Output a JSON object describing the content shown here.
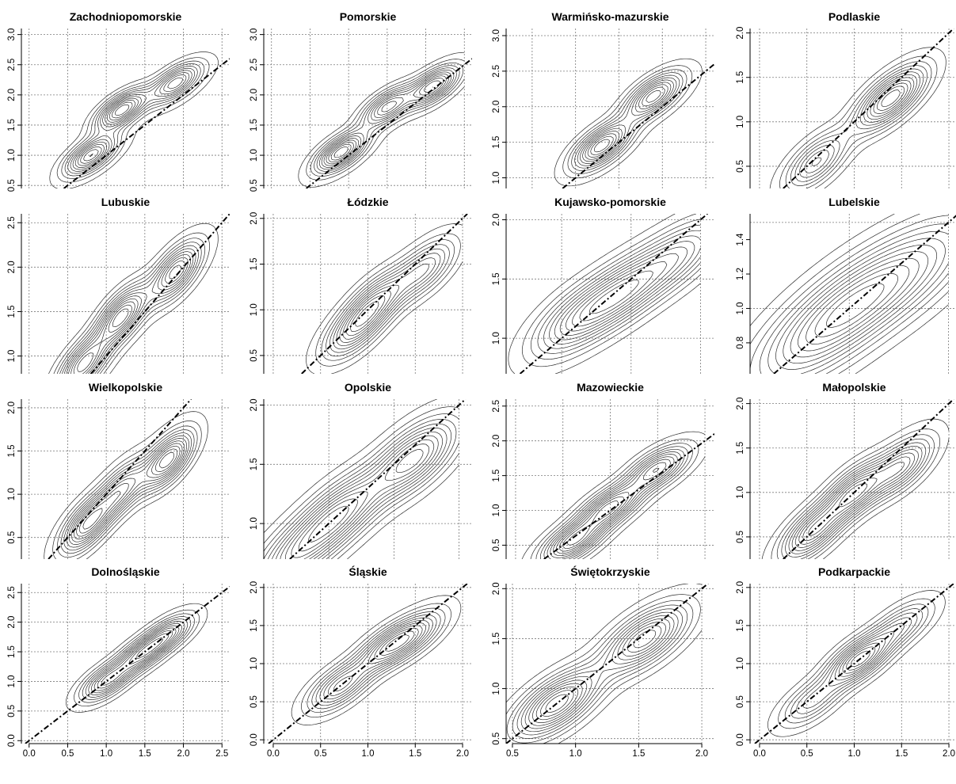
{
  "chart_data": [
    {
      "type": "contour",
      "title": "Zachodniopomorskie",
      "xlim": [
        -0.1,
        2.6
      ],
      "ylim": [
        0.45,
        3.1
      ],
      "xticks": [],
      "yticks": [
        0.5,
        1.0,
        1.5,
        2.0,
        2.5,
        3.0
      ],
      "ytick_labels": [
        "0.5",
        "1.0",
        "1.5",
        "2.0",
        "2.5",
        "3.0"
      ],
      "grid": true,
      "reference_line": "y = x",
      "range": [
        0.2,
        2.5
      ],
      "modes": [
        {
          "x": 0.8,
          "y": 1.0,
          "weight": 1.0
        },
        {
          "x": 1.2,
          "y": 1.75,
          "weight": 1.1
        },
        {
          "x": 1.9,
          "y": 2.2,
          "weight": 0.9
        }
      ]
    },
    {
      "type": "contour",
      "title": "Pomorskie",
      "xlim": [
        -0.1,
        2.6
      ],
      "ylim": [
        0.45,
        3.1
      ],
      "xticks": [],
      "yticks": [
        0.5,
        1.0,
        1.5,
        2.0,
        2.5,
        3.0
      ],
      "ytick_labels": [
        "0.5",
        "1.0",
        "1.5",
        "2.0",
        "2.5",
        "3.0"
      ],
      "grid": true,
      "reference_line": "y = x",
      "range": [
        0.2,
        2.5
      ],
      "modes": [
        {
          "x": 0.9,
          "y": 1.05,
          "weight": 1.0
        },
        {
          "x": 1.5,
          "y": 1.8,
          "weight": 0.8
        },
        {
          "x": 2.1,
          "y": 2.15,
          "weight": 0.9
        }
      ]
    },
    {
      "type": "contour",
      "title": "Warmińsko-mazurskie",
      "xlim": [
        0.2,
        2.6
      ],
      "ylim": [
        0.85,
        3.1
      ],
      "xticks": [],
      "yticks": [
        1.0,
        1.5,
        2.0,
        2.5,
        3.0
      ],
      "ytick_labels": [
        "1.0",
        "1.5",
        "2.0",
        "2.5",
        "3.0"
      ],
      "grid": true,
      "reference_line": "y = x",
      "range": [
        0.8,
        2.5
      ],
      "modes": [
        {
          "x": 1.3,
          "y": 1.45,
          "weight": 1.1
        },
        {
          "x": 1.9,
          "y": 2.15,
          "weight": 1.0
        }
      ]
    },
    {
      "type": "contour",
      "title": "Podlaskie",
      "xlim": [
        -0.1,
        2.1
      ],
      "ylim": [
        0.25,
        2.05
      ],
      "xticks": [],
      "yticks": [
        0.5,
        1.0,
        1.5,
        2.0
      ],
      "ytick_labels": [
        "0.5",
        "1.0",
        "1.5",
        "2.0"
      ],
      "grid": true,
      "reference_line": "y = x",
      "range": [
        0.2,
        2.0
      ],
      "modes": [
        {
          "x": 0.6,
          "y": 0.55,
          "weight": 1.0
        },
        {
          "x": 1.3,
          "y": 1.2,
          "weight": 1.0
        },
        {
          "x": 1.5,
          "y": 1.35,
          "weight": 0.8
        }
      ]
    },
    {
      "type": "contour",
      "title": "Lubuskie",
      "xlim": [
        -0.1,
        2.6
      ],
      "ylim": [
        0.8,
        2.6
      ],
      "xticks": [],
      "yticks": [
        1.0,
        1.5,
        2.0,
        2.5
      ],
      "ytick_labels": [
        "1.0",
        "1.5",
        "2.0",
        "2.5"
      ],
      "grid": true,
      "reference_line": "y = x",
      "range": [
        0.2,
        2.5
      ],
      "modes": [
        {
          "x": 0.7,
          "y": 0.9,
          "weight": 1.0
        },
        {
          "x": 1.2,
          "y": 1.45,
          "weight": 1.1
        },
        {
          "x": 1.9,
          "y": 1.95,
          "weight": 1.0
        }
      ]
    },
    {
      "type": "contour",
      "title": "Łódzkie",
      "xlim": [
        -0.1,
        2.1
      ],
      "ylim": [
        0.3,
        2.05
      ],
      "xticks": [],
      "yticks": [
        0.5,
        1.0,
        1.5,
        2.0
      ],
      "ytick_labels": [
        "0.5",
        "1.0",
        "1.5",
        "2.0"
      ],
      "grid": true,
      "reference_line": "y = x",
      "range": [
        0.2,
        2.0
      ],
      "modes": [
        {
          "x": 0.85,
          "y": 0.78,
          "weight": 1.0
        },
        {
          "x": 1.1,
          "y": 1.1,
          "weight": 1.0
        },
        {
          "x": 1.6,
          "y": 1.45,
          "weight": 0.9
        }
      ]
    },
    {
      "type": "contour",
      "title": "Kujawsko-pomorskie",
      "xlim": [
        0.6,
        2.1
      ],
      "ylim": [
        0.7,
        2.05
      ],
      "xticks": [],
      "yticks": [
        1.0,
        1.5,
        2.0
      ],
      "ytick_labels": [
        "1.0",
        "1.5",
        "2.0"
      ],
      "grid": true,
      "reference_line": "y = x",
      "range": [
        0.8,
        2.0
      ],
      "modes": [
        {
          "x": 1.1,
          "y": 1.15,
          "weight": 1.0
        },
        {
          "x": 1.45,
          "y": 1.4,
          "weight": 1.2
        },
        {
          "x": 1.85,
          "y": 1.7,
          "weight": 0.9
        }
      ]
    },
    {
      "type": "contour",
      "title": "Lubelskie",
      "xlim": [
        0.5,
        1.55
      ],
      "ylim": [
        0.62,
        1.55
      ],
      "xticks": [],
      "yticks": [
        0.6,
        0.8,
        1.0,
        1.2,
        1.4
      ],
      "ytick_labels": [
        "",
        "0.8",
        "1.0",
        "1.2",
        "1.4"
      ],
      "grid": true,
      "reference_line": "y = x",
      "range": [
        0.6,
        1.5
      ],
      "modes": [
        {
          "x": 0.8,
          "y": 0.82,
          "weight": 1.0
        },
        {
          "x": 1.05,
          "y": 1.05,
          "weight": 1.2
        },
        {
          "x": 1.35,
          "y": 1.25,
          "weight": 0.9
        }
      ]
    },
    {
      "type": "contour",
      "title": "Wielkopolskie",
      "xlim": [
        -0.1,
        2.6
      ],
      "ylim": [
        0.25,
        2.1
      ],
      "xticks": [],
      "yticks": [
        0.5,
        1.0,
        1.5,
        2.0
      ],
      "ytick_labels": [
        "0.5",
        "1.0",
        "1.5",
        "2.0"
      ],
      "grid": true,
      "reference_line": "y = x",
      "range": [
        0.2,
        2.5
      ],
      "modes": [
        {
          "x": 0.75,
          "y": 0.65,
          "weight": 1.0
        },
        {
          "x": 1.2,
          "y": 1.05,
          "weight": 0.8
        },
        {
          "x": 1.8,
          "y": 1.4,
          "weight": 1.1
        }
      ]
    },
    {
      "type": "contour",
      "title": "Opolskie",
      "xlim": [
        0.5,
        2.1
      ],
      "ylim": [
        0.7,
        2.05
      ],
      "xticks": [],
      "yticks": [
        1.0,
        1.5,
        2.0
      ],
      "ytick_labels": [
        "1.0",
        "1.5",
        "2.0"
      ],
      "grid": true,
      "reference_line": "y = x",
      "range": [
        0.6,
        2.0
      ],
      "modes": [
        {
          "x": 0.75,
          "y": 0.75,
          "weight": 0.8
        },
        {
          "x": 1.1,
          "y": 1.1,
          "weight": 1.0
        },
        {
          "x": 1.65,
          "y": 1.55,
          "weight": 1.1
        }
      ]
    },
    {
      "type": "contour",
      "title": "Mazowieckie",
      "xlim": [
        -0.1,
        2.1
      ],
      "ylim": [
        0.3,
        2.6
      ],
      "xticks": [],
      "yticks": [
        0.5,
        1.0,
        1.5,
        2.0,
        2.5
      ],
      "ytick_labels": [
        "0.5",
        "1.0",
        "1.5",
        "2.0",
        "2.5"
      ],
      "grid": true,
      "reference_line": "y = x",
      "range": [
        0.2,
        2.0
      ],
      "modes": [
        {
          "x": 0.6,
          "y": 0.55,
          "weight": 1.0
        },
        {
          "x": 1.0,
          "y": 1.05,
          "weight": 1.0
        },
        {
          "x": 1.5,
          "y": 1.6,
          "weight": 0.9
        }
      ]
    },
    {
      "type": "contour",
      "title": "Małopolskie",
      "xlim": [
        -0.1,
        2.1
      ],
      "ylim": [
        0.25,
        2.05
      ],
      "xticks": [],
      "yticks": [
        0.5,
        1.0,
        1.5,
        2.0
      ],
      "ytick_labels": [
        "0.5",
        "1.0",
        "1.5",
        "2.0"
      ],
      "grid": true,
      "reference_line": "y = x",
      "range": [
        0.2,
        2.0
      ],
      "modes": [
        {
          "x": 0.55,
          "y": 0.55,
          "weight": 1.0
        },
        {
          "x": 1.0,
          "y": 1.0,
          "weight": 1.1
        },
        {
          "x": 1.5,
          "y": 1.3,
          "weight": 0.9
        }
      ]
    },
    {
      "type": "contour",
      "title": "Dolnośląskie",
      "xlim": [
        -0.1,
        2.6
      ],
      "ylim": [
        -0.05,
        2.65
      ],
      "xticks": [
        0.0,
        0.5,
        1.0,
        1.5,
        2.0,
        2.5
      ],
      "xtick_labels": [
        "0.0",
        "0.5",
        "1.0",
        "1.5",
        "2.0",
        "2.5"
      ],
      "yticks": [
        0.0,
        0.5,
        1.0,
        1.5,
        2.0,
        2.5
      ],
      "ytick_labels": [
        "0.0",
        "0.5",
        "1.0",
        "1.5",
        "2.0",
        "2.5"
      ],
      "grid": true,
      "reference_line": "y = x",
      "range": [
        0.2,
        2.5
      ],
      "modes": [
        {
          "x": 1.0,
          "y": 1.0,
          "weight": 1.0
        },
        {
          "x": 1.45,
          "y": 1.45,
          "weight": 1.0
        },
        {
          "x": 1.8,
          "y": 1.8,
          "weight": 0.9
        }
      ]
    },
    {
      "type": "contour",
      "title": "Śląskie",
      "xlim": [
        -0.1,
        2.1
      ],
      "ylim": [
        -0.05,
        2.05
      ],
      "xticks": [
        0.0,
        0.5,
        1.0,
        1.5,
        2.0
      ],
      "xtick_labels": [
        "0.0",
        "0.5",
        "1.0",
        "1.5",
        "2.0"
      ],
      "yticks": [
        0.0,
        0.5,
        1.0,
        1.5,
        2.0
      ],
      "ytick_labels": [
        "0.0",
        "0.5",
        "1.0",
        "1.5",
        "2.0"
      ],
      "grid": true,
      "reference_line": "y = x",
      "range": [
        0.0,
        2.0
      ],
      "modes": [
        {
          "x": 0.7,
          "y": 0.7,
          "weight": 1.0
        },
        {
          "x": 1.2,
          "y": 1.2,
          "weight": 1.0
        },
        {
          "x": 1.5,
          "y": 1.4,
          "weight": 0.8
        }
      ]
    },
    {
      "type": "contour",
      "title": "Świętokrzyskie",
      "xlim": [
        0.45,
        2.1
      ],
      "ylim": [
        0.45,
        2.05
      ],
      "xticks": [
        0.5,
        1.0,
        1.5,
        2.0
      ],
      "xtick_labels": [
        "0.5",
        "1.0",
        "1.5",
        "2.0"
      ],
      "yticks": [
        0.5,
        1.0,
        1.5,
        2.0
      ],
      "ytick_labels": [
        "0.5",
        "1.0",
        "1.5",
        "2.0"
      ],
      "grid": true,
      "reference_line": "y = x",
      "range": [
        0.5,
        2.0
      ],
      "modes": [
        {
          "x": 0.85,
          "y": 0.85,
          "weight": 1.1
        },
        {
          "x": 1.55,
          "y": 1.5,
          "weight": 1.0
        }
      ]
    },
    {
      "type": "contour",
      "title": "Podkarpackie",
      "xlim": [
        -0.1,
        2.1
      ],
      "ylim": [
        -0.05,
        2.05
      ],
      "xticks": [
        0.0,
        0.5,
        1.0,
        1.5,
        2.0
      ],
      "xtick_labels": [
        "0.0",
        "0.5",
        "1.0",
        "1.5",
        "2.0"
      ],
      "yticks": [
        0.0,
        0.5,
        1.0,
        1.5,
        2.0
      ],
      "ytick_labels": [
        "0.0",
        "0.5",
        "1.0",
        "1.5",
        "2.0"
      ],
      "grid": true,
      "reference_line": "y = x",
      "range": [
        0.0,
        2.0
      ],
      "modes": [
        {
          "x": 0.55,
          "y": 0.5,
          "weight": 0.8
        },
        {
          "x": 1.05,
          "y": 1.05,
          "weight": 1.6
        },
        {
          "x": 1.5,
          "y": 1.5,
          "weight": 0.8
        }
      ]
    }
  ]
}
